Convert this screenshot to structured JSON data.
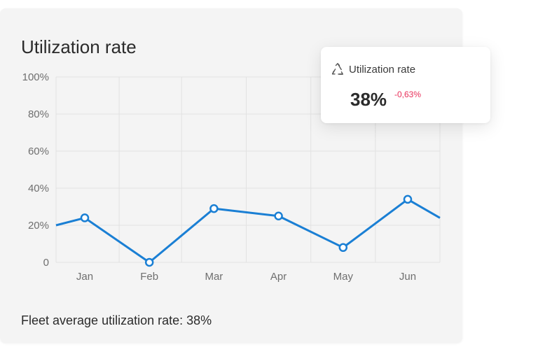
{
  "card": {
    "title": "Utilization rate",
    "footer": "Fleet average utilization rate: 38%"
  },
  "tooltip": {
    "icon": "recycle-icon",
    "label": "Utilization rate",
    "value": "38%",
    "delta": "-0,63%",
    "delta_color": "#e8305a"
  },
  "chart_data": {
    "type": "line",
    "categories": [
      "Jan",
      "Feb",
      "Mar",
      "Apr",
      "May",
      "Jun"
    ],
    "series": [
      {
        "values": [
          24,
          0,
          29,
          25,
          8,
          34
        ],
        "lead_in": 20,
        "lead_out": 24,
        "color": "#1a7fd4"
      }
    ],
    "y_ticks": [
      "0",
      "20%",
      "40%",
      "60%",
      "80%",
      "100%"
    ],
    "ylim": [
      0,
      100
    ],
    "grid": true,
    "xlabel": "",
    "ylabel": ""
  }
}
